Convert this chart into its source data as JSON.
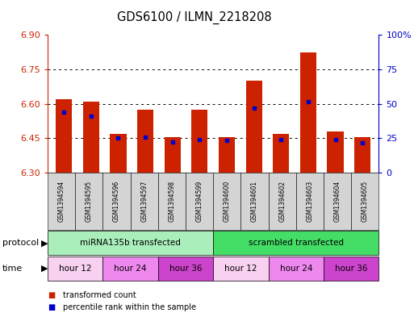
{
  "title": "GDS6100 / ILMN_2218208",
  "samples": [
    "GSM1394594",
    "GSM1394595",
    "GSM1394596",
    "GSM1394597",
    "GSM1394598",
    "GSM1394599",
    "GSM1394600",
    "GSM1394601",
    "GSM1394602",
    "GSM1394603",
    "GSM1394604",
    "GSM1394605"
  ],
  "bar_tops": [
    6.62,
    6.61,
    6.47,
    6.575,
    6.455,
    6.575,
    6.455,
    6.7,
    6.47,
    6.825,
    6.48,
    6.455
  ],
  "bar_bottom": 6.3,
  "blue_dots": [
    6.565,
    6.545,
    6.45,
    6.455,
    6.435,
    6.445,
    6.44,
    6.58,
    6.445,
    6.61,
    6.445,
    6.432
  ],
  "bar_color": "#cc2200",
  "dot_color": "#0000cc",
  "ylim": [
    6.3,
    6.9
  ],
  "yticks_left": [
    6.3,
    6.45,
    6.6,
    6.75,
    6.9
  ],
  "yticks_right_vals": [
    0,
    25,
    50,
    75,
    100
  ],
  "yticks_right_labels": [
    "0",
    "25",
    "50",
    "75",
    "100%"
  ],
  "protocol_groups": [
    {
      "label": "miRNA135b transfected",
      "start": 0,
      "end": 5,
      "color": "#aaeebb"
    },
    {
      "label": "scrambled transfected",
      "start": 6,
      "end": 11,
      "color": "#44dd66"
    }
  ],
  "time_groups": [
    {
      "label": "hour 12",
      "start": 0,
      "end": 1,
      "color": "#f8d0f0"
    },
    {
      "label": "hour 24",
      "start": 2,
      "end": 3,
      "color": "#ee88ee"
    },
    {
      "label": "hour 36",
      "start": 4,
      "end": 5,
      "color": "#cc44cc"
    },
    {
      "label": "hour 12",
      "start": 6,
      "end": 7,
      "color": "#f8d0f0"
    },
    {
      "label": "hour 24",
      "start": 8,
      "end": 9,
      "color": "#ee88ee"
    },
    {
      "label": "hour 36",
      "start": 10,
      "end": 11,
      "color": "#cc44cc"
    }
  ],
  "legend_items": [
    {
      "label": "transformed count",
      "color": "#cc2200"
    },
    {
      "label": "percentile rank within the sample",
      "color": "#0000cc"
    }
  ],
  "protocol_label": "protocol",
  "time_label": "time",
  "bar_width": 0.6,
  "sample_col_bg": "#d4d4d4"
}
